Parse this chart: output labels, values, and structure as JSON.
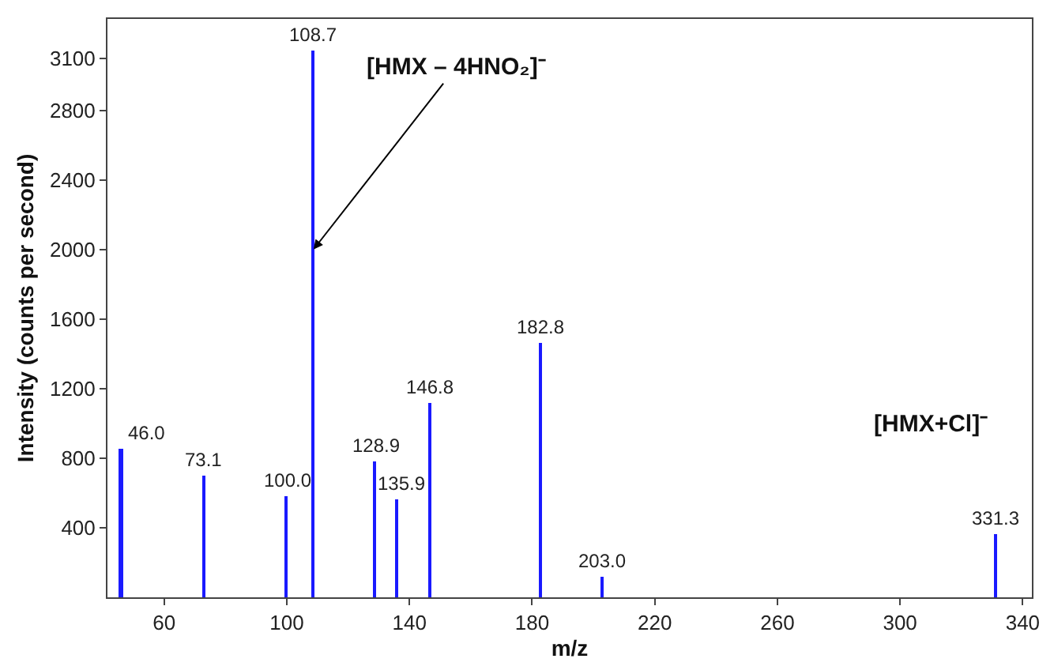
{
  "chart_data": {
    "type": "bar",
    "xlabel": "m/z",
    "ylabel": "Intensity (counts per second)",
    "x": [
      46.0,
      73.1,
      100.0,
      108.7,
      128.9,
      135.9,
      146.8,
      182.8,
      203.0,
      331.3
    ],
    "series": [
      {
        "color": "#1a1aff",
        "values": [
          850,
          700,
          580,
          3140,
          780,
          560,
          1120,
          1460,
          120,
          360
        ]
      }
    ],
    "xlim": [
      41.5,
      343
    ],
    "xticks": [
      60,
      100,
      140,
      180,
      220,
      260,
      300,
      340
    ],
    "ylim": [
      0,
      3325
    ],
    "yticks": [
      400,
      800,
      1200,
      1600,
      2000,
      2400,
      2800,
      3100
    ],
    "grid": false,
    "annotations": [
      {
        "text": "[HMX – 4HNO₂]⁻",
        "x": 108.7,
        "y": 2000
      },
      "[HMX+Cl]⁻",
      {
        "text": "46.0",
        "x": 46.0,
        "y": 850
      },
      {
        "text": "73.1",
        "x": 73.1,
        "y": 700
      },
      {
        "text": "100.0",
        "x": 100.0,
        "y": 580
      },
      {
        "text": "108.7",
        "x": 108.7,
        "y": 3140
      },
      {
        "text": "128.9",
        "x": 128.9,
        "y": 780
      },
      {
        "text": "135.9",
        "x": 135.9,
        "y": 560
      },
      {
        "text": "146.8",
        "x": 146.8,
        "y": 1120
      },
      {
        "text": "182.8",
        "x": 182.8,
        "y": 1460
      },
      {
        "text": "203.0",
        "x": 203.0,
        "y": 120
      },
      {
        "text": "331.3",
        "x": 331.3,
        "y": 360
      }
    ]
  }
}
